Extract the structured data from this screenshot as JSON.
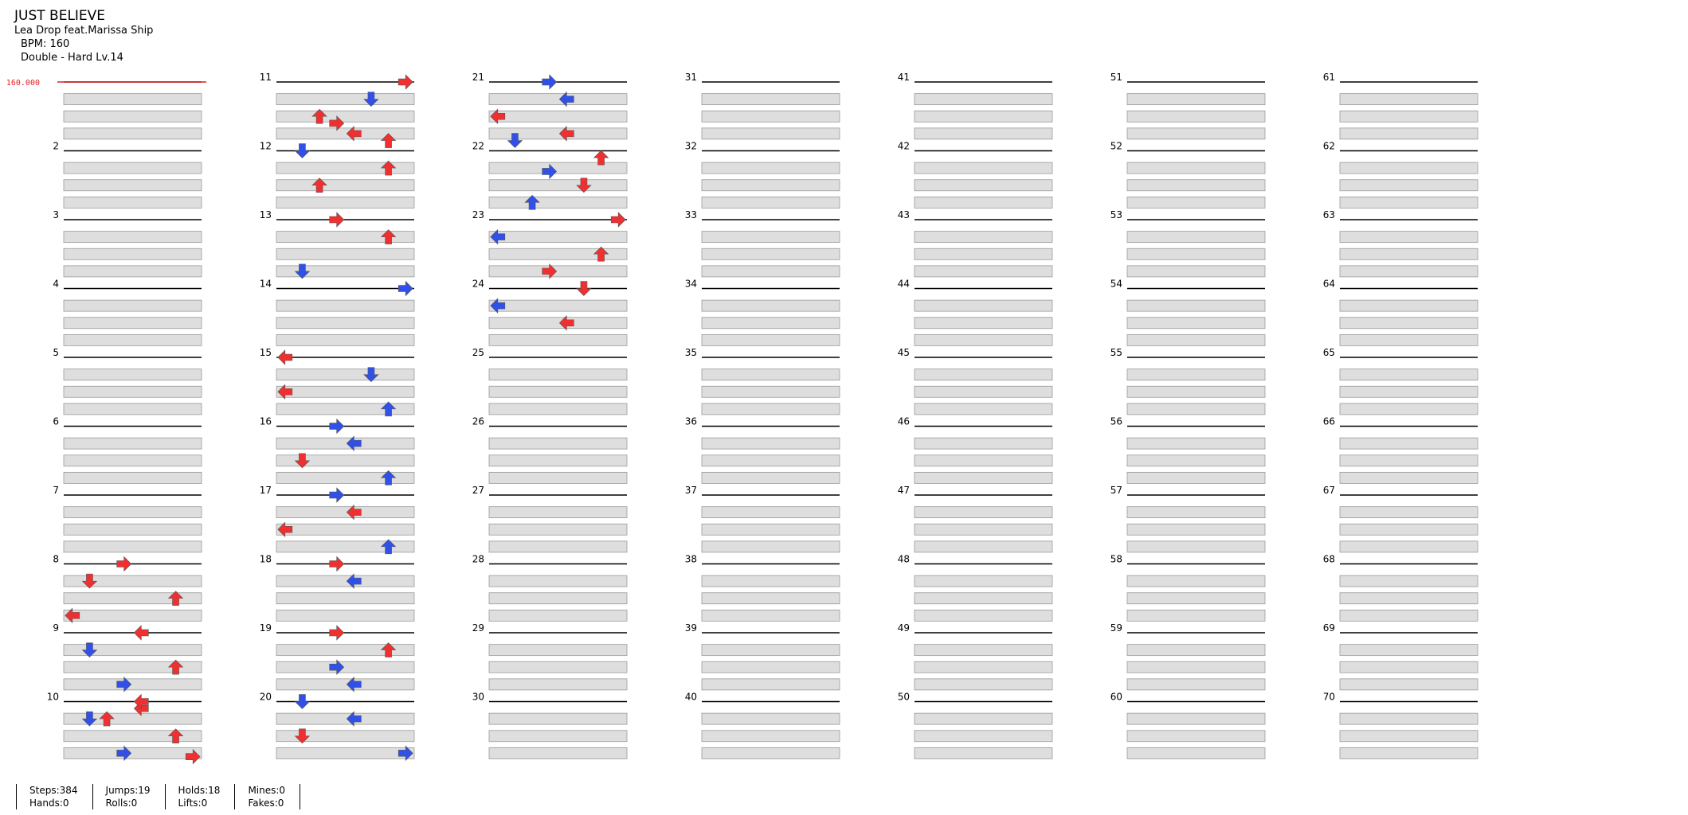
{
  "song": {
    "title": "JUST BELIEVE",
    "artist": "Lea Drop feat.Marissa Ship",
    "bpm_label": "BPM: 160",
    "difficulty": "Double - Hard",
    "level": "Lv.14"
  },
  "bpm_marker": {
    "value": "160.000",
    "color": "#e02020"
  },
  "colors": {
    "red": "#f03030",
    "blue": "#3050e8",
    "yellow": "#f5dc30",
    "purple": "#b030f0",
    "green": "#70dd70",
    "beat_fill": "#dedede",
    "measure_line": "#000000"
  },
  "measures_per_column": 10,
  "rows_per_measure": 4,
  "measure_labels": [
    "",
    "2",
    "3",
    "4",
    "5",
    "6",
    "7",
    "8",
    "9",
    "10",
    "11",
    "12",
    "13",
    "14",
    "15",
    "16",
    "17",
    "18",
    "19",
    "20",
    "21",
    "22",
    "23",
    "24",
    "25",
    "26",
    "27",
    "28",
    "29",
    "30",
    "31",
    "32",
    "33",
    "34",
    "35",
    "36",
    "37",
    "38",
    "39",
    "40",
    "41",
    "42",
    "43",
    "44",
    "45",
    "46",
    "47",
    "48",
    "49",
    "50",
    "51",
    "52",
    "53",
    "54",
    "55",
    "56",
    "57",
    "58",
    "59",
    "60",
    "61",
    "62",
    "63",
    "64",
    "65",
    "66",
    "67",
    "68",
    "69",
    "70"
  ],
  "lanes": [
    "P1-left",
    "P1-down",
    "P1-up",
    "P1-right",
    "P2-left",
    "P2-down",
    "P2-up",
    "P2-right"
  ],
  "notes": [
    [
      7,
      "right",
      "red"
    ],
    [
      9.1,
      "left",
      "red"
    ],
    [
      9.25,
      "up",
      "red"
    ],
    [
      9.8,
      "right",
      "red"
    ],
    [
      10.6,
      "right",
      "red"
    ],
    [
      10.85,
      "up",
      "red"
    ],
    [
      7.25,
      "down",
      "red"
    ],
    [
      7.5,
      "up",
      "red"
    ],
    [
      7.75,
      "left",
      "red"
    ],
    [
      8,
      "left",
      "red"
    ],
    [
      8.25,
      "down",
      "blue"
    ],
    [
      8.5,
      "up",
      "red"
    ],
    [
      8.75,
      "right",
      "blue"
    ],
    [
      9,
      "left",
      "red"
    ],
    [
      9.25,
      "down",
      "blue"
    ],
    [
      9.5,
      "up",
      "red"
    ],
    [
      9.75,
      "right",
      "blue"
    ],
    [
      10,
      "right",
      "red"
    ],
    [
      11.5,
      "up",
      "red"
    ],
    [
      10.25,
      "down",
      "blue"
    ],
    [
      10.5,
      "up",
      "red"
    ],
    [
      10.75,
      "left",
      "red"
    ],
    [
      11,
      "down",
      "blue"
    ],
    [
      11.25,
      "up",
      "red"
    ],
    [
      12,
      "right",
      "red"
    ],
    [
      12.25,
      "up",
      "red"
    ],
    [
      12.75,
      "down",
      "blue"
    ],
    [
      13,
      "right",
      "blue"
    ],
    [
      14,
      "left",
      "red"
    ],
    [
      14.25,
      "down",
      "blue"
    ],
    [
      14.5,
      "left",
      "red"
    ],
    [
      14.75,
      "up",
      "blue"
    ],
    [
      15,
      "right",
      "blue"
    ],
    [
      15.25,
      "left",
      "blue"
    ],
    [
      15.5,
      "down",
      "red"
    ],
    [
      15.75,
      "up",
      "blue"
    ],
    [
      16,
      "right",
      "blue"
    ],
    [
      16.25,
      "left",
      "red"
    ],
    [
      16.5,
      "left",
      "red"
    ],
    [
      16.75,
      "up",
      "blue"
    ],
    [
      17,
      "right",
      "red"
    ],
    [
      17.25,
      "left",
      "blue"
    ],
    [
      18,
      "right",
      "red"
    ],
    [
      18.25,
      "up",
      "red"
    ],
    [
      18.5,
      "right",
      "blue"
    ],
    [
      18.75,
      "left",
      "blue"
    ],
    [
      19,
      "down",
      "blue"
    ],
    [
      19.25,
      "left",
      "blue"
    ],
    [
      19.5,
      "down",
      "red"
    ],
    [
      19.75,
      "right",
      "blue"
    ],
    [
      20,
      "right",
      "blue"
    ],
    [
      20.25,
      "left",
      "blue"
    ],
    [
      20.5,
      "left",
      "red"
    ],
    [
      20.75,
      "left",
      "red"
    ],
    [
      20.85,
      "down",
      "blue"
    ],
    [
      21.1,
      "up",
      "red"
    ],
    [
      21.3,
      "right",
      "blue"
    ],
    [
      21.5,
      "down",
      "red"
    ],
    [
      21.75,
      "up",
      "blue"
    ],
    [
      22,
      "right",
      "red"
    ],
    [
      22.25,
      "left",
      "blue"
    ],
    [
      22.5,
      "up",
      "red"
    ],
    [
      22.75,
      "right",
      "red"
    ],
    [
      23,
      "down",
      "red"
    ],
    [
      23.25,
      "left",
      "blue"
    ],
    [
      23.5,
      "left",
      "red"
    ]
  ],
  "holds": [],
  "stats": [
    [
      "Steps:384",
      "Hands:0"
    ],
    [
      "Jumps:19",
      "Rolls:0"
    ],
    [
      "Holds:18",
      "Lifts:0"
    ],
    [
      "Mines:0",
      "Fakes:0"
    ]
  ]
}
